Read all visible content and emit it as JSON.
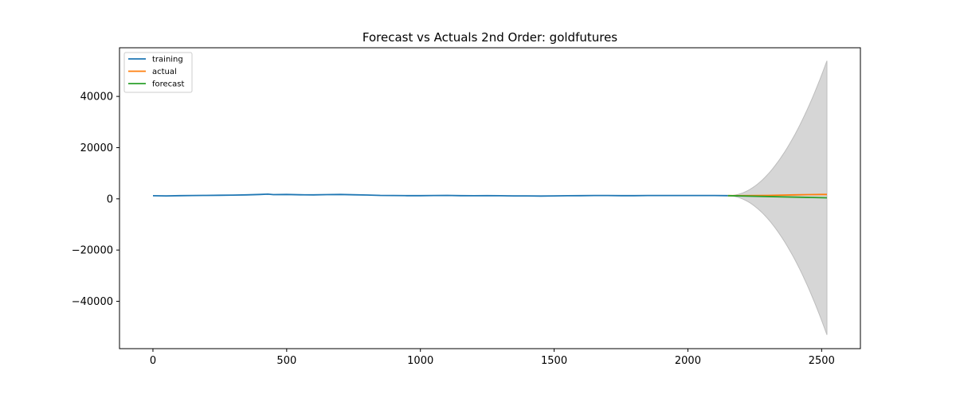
{
  "chart_data": {
    "type": "line",
    "title": "Forecast vs Actuals 2nd Order: goldfutures",
    "xlabel": "",
    "ylabel": "",
    "xlim": [
      -125,
      2645
    ],
    "ylim": [
      -58500,
      59000
    ],
    "xticks": [
      0,
      500,
      1000,
      1500,
      2000,
      2500
    ],
    "yticks": [
      -40000,
      -20000,
      0,
      20000,
      40000
    ],
    "xtick_labels": [
      "0",
      "500",
      "1000",
      "1500",
      "2000",
      "2500"
    ],
    "ytick_labels": [
      "−40000",
      "−20000",
      "0",
      "20000",
      "40000"
    ],
    "grid": false,
    "legend_position": "upper-left",
    "series": [
      {
        "name": "training",
        "color": "#1f77b4",
        "x": [
          0,
          50,
          100,
          150,
          200,
          250,
          300,
          350,
          400,
          430,
          450,
          500,
          550,
          600,
          650,
          700,
          750,
          800,
          850,
          900,
          950,
          1000,
          1050,
          1100,
          1150,
          1200,
          1250,
          1300,
          1350,
          1400,
          1450,
          1500,
          1550,
          1600,
          1650,
          1700,
          1750,
          1800,
          1850,
          1900,
          1950,
          2000,
          2050,
          2100,
          2150
        ],
        "y": [
          1200,
          1150,
          1250,
          1300,
          1350,
          1400,
          1450,
          1550,
          1700,
          1850,
          1650,
          1700,
          1600,
          1550,
          1650,
          1700,
          1600,
          1500,
          1350,
          1300,
          1250,
          1250,
          1300,
          1350,
          1250,
          1200,
          1250,
          1200,
          1150,
          1150,
          1100,
          1150,
          1200,
          1250,
          1300,
          1300,
          1250,
          1250,
          1300,
          1300,
          1300,
          1300,
          1300,
          1300,
          1250
        ]
      },
      {
        "name": "actual",
        "color": "#ff7f0e",
        "x": [
          2150,
          2200,
          2250,
          2300,
          2350,
          2400,
          2450,
          2500,
          2520
        ],
        "y": [
          1250,
          1250,
          1300,
          1350,
          1450,
          1550,
          1650,
          1700,
          1700
        ]
      },
      {
        "name": "forecast",
        "color": "#2ca02c",
        "x": [
          2150,
          2520
        ],
        "y": [
          1250,
          400
        ]
      }
    ],
    "confidence_band": {
      "color": "#d6d6d6",
      "x_start": 2150,
      "x_end": 2520,
      "center_start": 1250,
      "center_end": 400,
      "half_width_end": 53500
    }
  }
}
